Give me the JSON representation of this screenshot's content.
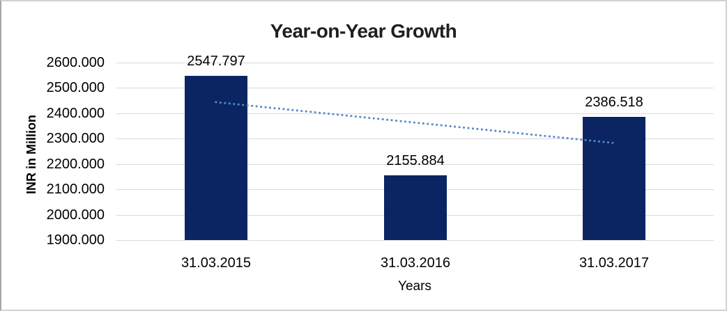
{
  "frame": {
    "background": "#ffffff",
    "border_color": "#d2d2d2"
  },
  "chart_data": {
    "type": "bar",
    "title": "Year-on-Year Growth",
    "xlabel": "Years",
    "ylabel": "INR in Million",
    "categories": [
      "31.03.2015",
      "31.03.2016",
      "31.03.2017"
    ],
    "values": [
      2547.797,
      2155.884,
      2386.518
    ],
    "value_labels": [
      "2547.797",
      "2155.884",
      "2386.518"
    ],
    "ylim": [
      1900,
      2600
    ],
    "ytick_step": 100,
    "ytick_labels": [
      "2600.000",
      "2500.000",
      "2400.000",
      "2300.000",
      "2200.000",
      "2100.000",
      "2000.000",
      "1900.000"
    ],
    "grid": true,
    "legend": false,
    "bar_color": "#0b2563",
    "gridline_color": "#d9d9d9",
    "text_color": "#000000",
    "title_color": "#1f1f1f",
    "trendline": {
      "type": "linear",
      "style": "dotted",
      "color": "#5289c9",
      "start_value": 2444.04,
      "end_value": 2282.76
    }
  }
}
